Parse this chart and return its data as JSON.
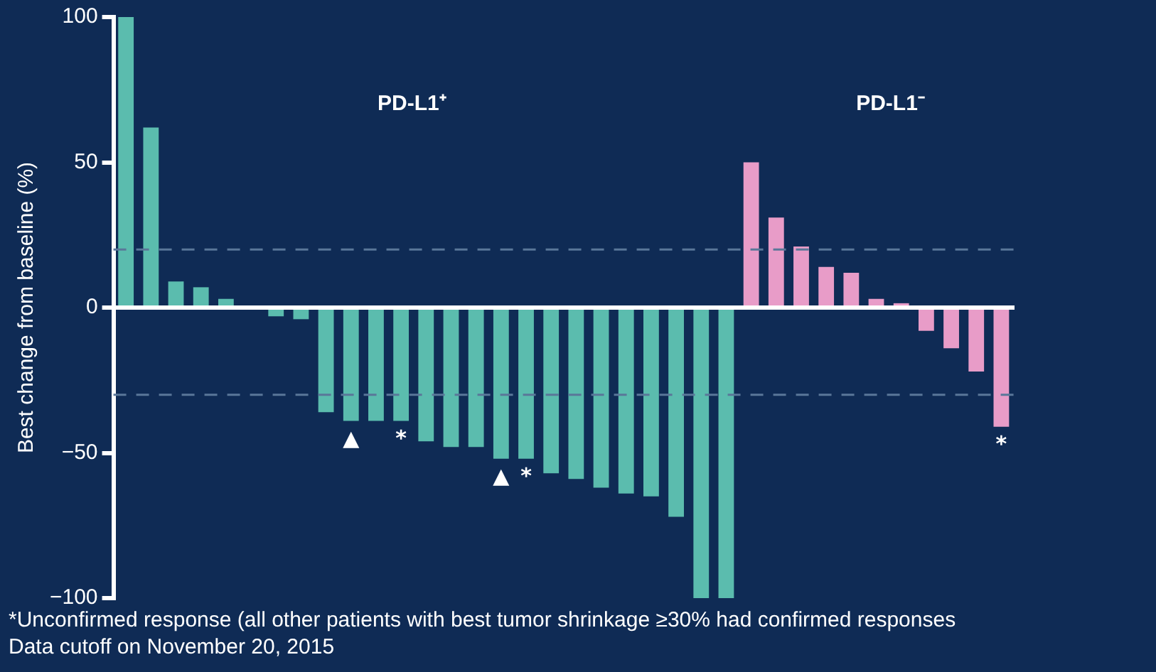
{
  "chart_data": {
    "type": "bar",
    "ylabel": "Best change from baseline (%)",
    "categories": [
      null,
      null,
      null,
      null,
      null,
      null,
      null,
      null,
      null,
      null,
      null,
      null,
      null,
      null,
      null,
      null,
      null,
      null,
      null,
      null,
      null,
      null,
      null,
      null,
      null,
      null,
      null,
      null,
      null,
      null,
      null,
      null,
      null,
      null,
      null,
      null
    ],
    "values": [
      100,
      62,
      9,
      7,
      3,
      0,
      -3,
      -4,
      -36,
      -39,
      -39,
      -39,
      -46,
      -48,
      -48,
      -52,
      -52,
      -57,
      -59,
      -62,
      -64,
      -65,
      -72,
      -100,
      -100,
      50,
      31,
      21,
      14,
      12,
      3,
      1.5,
      -8,
      -14,
      -22,
      -41
    ],
    "colors": [
      "#5bbcae",
      "#5bbcae",
      "#5bbcae",
      "#5bbcae",
      "#5bbcae",
      "#5bbcae",
      "#5bbcae",
      "#5bbcae",
      "#5bbcae",
      "#5bbcae",
      "#5bbcae",
      "#5bbcae",
      "#5bbcae",
      "#5bbcae",
      "#5bbcae",
      "#5bbcae",
      "#5bbcae",
      "#5bbcae",
      "#5bbcae",
      "#5bbcae",
      "#5bbcae",
      "#5bbcae",
      "#5bbcae",
      "#5bbcae",
      "#5bbcae",
      "#e89cc8",
      "#e89cc8",
      "#e89cc8",
      "#e89cc8",
      "#e89cc8",
      "#e89cc8",
      "#e89cc8",
      "#e89cc8",
      "#e89cc8",
      "#e89cc8",
      "#e89cc8"
    ],
    "value_labels": [
      null,
      null,
      null,
      null,
      null,
      null,
      null,
      null,
      null,
      "▲",
      null,
      "*",
      null,
      null,
      null,
      "▲",
      "*",
      null,
      null,
      null,
      null,
      null,
      null,
      null,
      null,
      null,
      null,
      null,
      null,
      null,
      null,
      null,
      null,
      null,
      null,
      "*"
    ],
    "ylim": [
      -100,
      100
    ],
    "yticks": [
      -100,
      -50,
      0,
      50,
      100
    ],
    "ref_lines": [
      {
        "axis": "y",
        "value": 20,
        "color": "#5a7799",
        "line_style": "dashed"
      },
      {
        "axis": "y",
        "value": -30,
        "color": "#5a7799",
        "line_style": "dashed"
      }
    ],
    "annotations": [
      "PD-L1⁺",
      "PD-L1⁻",
      "*Unconfirmed response (all other patients with best tumor shrinkage ≥30% had confirmed responses",
      "Data cutoff on November 20, 2015"
    ]
  }
}
